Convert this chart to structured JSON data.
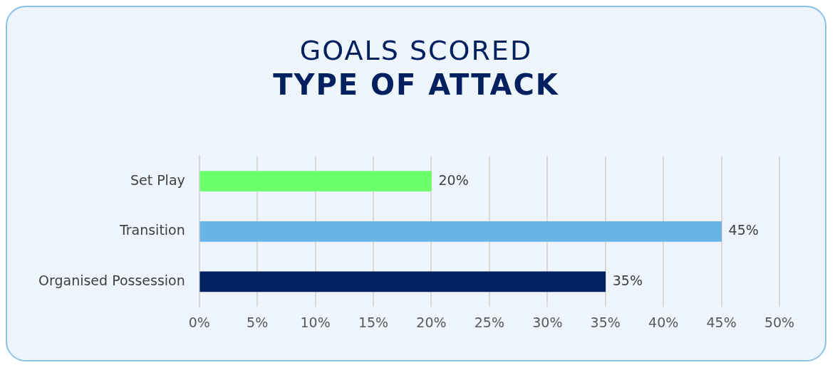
{
  "chart_data": {
    "type": "bar",
    "orientation": "horizontal",
    "title": "GOALS SCORED",
    "subtitle": "TYPE OF ATTACK",
    "categories": [
      "Set Play",
      "Transition",
      "Organised Possession"
    ],
    "values": [
      20,
      45,
      35
    ],
    "colors": [
      "#6bff6b",
      "#6ab4e6",
      "#002060"
    ],
    "value_labels": [
      "20%",
      "45%",
      "35%"
    ],
    "xlim": [
      0,
      50
    ],
    "xticks": [
      {
        "value": 0,
        "label": "0%"
      },
      {
        "value": 5,
        "label": "5%"
      },
      {
        "value": 10,
        "label": "10%"
      },
      {
        "value": 15,
        "label": "15%"
      },
      {
        "value": 20,
        "label": "20%"
      },
      {
        "value": 25,
        "label": "25%"
      },
      {
        "value": 30,
        "label": "30%"
      },
      {
        "value": 35,
        "label": "35%"
      },
      {
        "value": 40,
        "label": "40%"
      },
      {
        "value": 45,
        "label": "45%"
      },
      {
        "value": 50,
        "label": "50%"
      }
    ],
    "grid": "x",
    "legend": false
  }
}
